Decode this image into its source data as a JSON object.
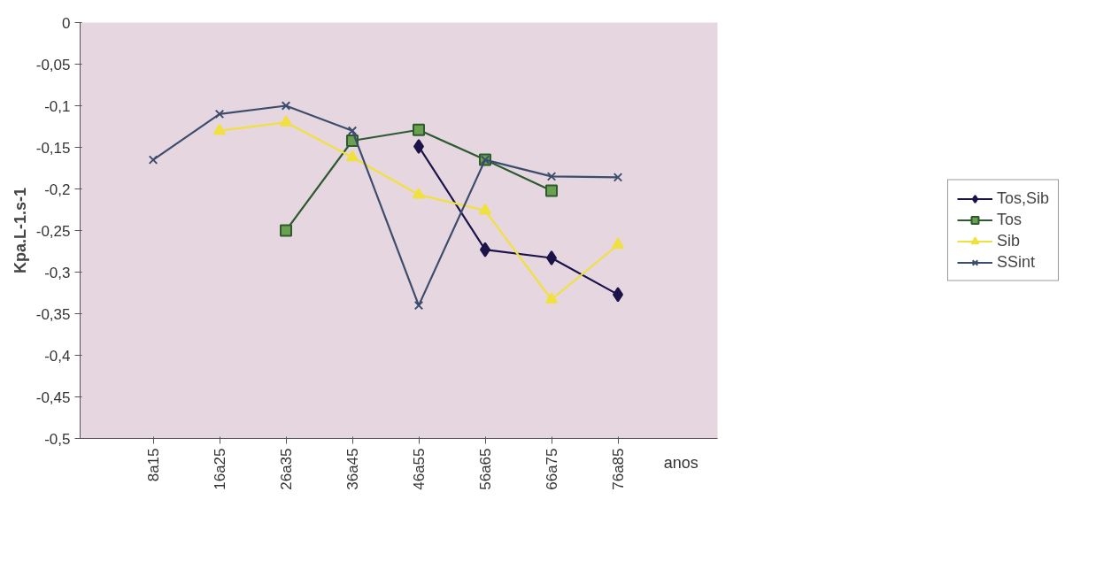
{
  "chart_data": {
    "type": "line",
    "xlabel": "anos",
    "ylabel": "Kpa.L-1.s-1",
    "categories": [
      "8a15",
      "16a25",
      "26a35",
      "36a45",
      "46a55",
      "56a65",
      "66a75",
      "76a85"
    ],
    "series": [
      {
        "name": "Tos,Sib",
        "color": "#1c1448",
        "marker": "diamond",
        "values": [
          null,
          null,
          null,
          null,
          -0.149,
          -0.273,
          -0.283,
          -0.327
        ]
      },
      {
        "name": "Tos",
        "color": "#2e5a30",
        "marker": "square",
        "values": [
          null,
          null,
          -0.25,
          -0.142,
          -0.129,
          -0.165,
          -0.202,
          null
        ]
      },
      {
        "name": "Sib",
        "color": "#f0e040",
        "marker": "triangle",
        "values": [
          null,
          -0.13,
          -0.12,
          -0.162,
          -0.207,
          -0.226,
          -0.333,
          -0.267
        ]
      },
      {
        "name": "SSint",
        "color": "#3c4c6c",
        "marker": "cross",
        "values": [
          -0.165,
          -0.11,
          -0.1,
          -0.13,
          -0.34,
          -0.165,
          -0.185,
          -0.186
        ]
      }
    ],
    "ylim": [
      -0.5,
      0
    ],
    "yticks": [
      {
        "value": 0,
        "label": "0"
      },
      {
        "value": -0.05,
        "label": "-0,05"
      },
      {
        "value": -0.1,
        "label": "-0,1"
      },
      {
        "value": -0.15,
        "label": "-0,15"
      },
      {
        "value": -0.2,
        "label": "-0,2"
      },
      {
        "value": -0.25,
        "label": "-0,25"
      },
      {
        "value": -0.3,
        "label": "-0,3"
      },
      {
        "value": -0.35,
        "label": "-0,35"
      },
      {
        "value": -0.4,
        "label": "-0,4"
      },
      {
        "value": -0.45,
        "label": "-0,45"
      },
      {
        "value": -0.5,
        "label": "-0,5"
      }
    ],
    "grid": false,
    "legend": "right",
    "line_style": "solid"
  }
}
